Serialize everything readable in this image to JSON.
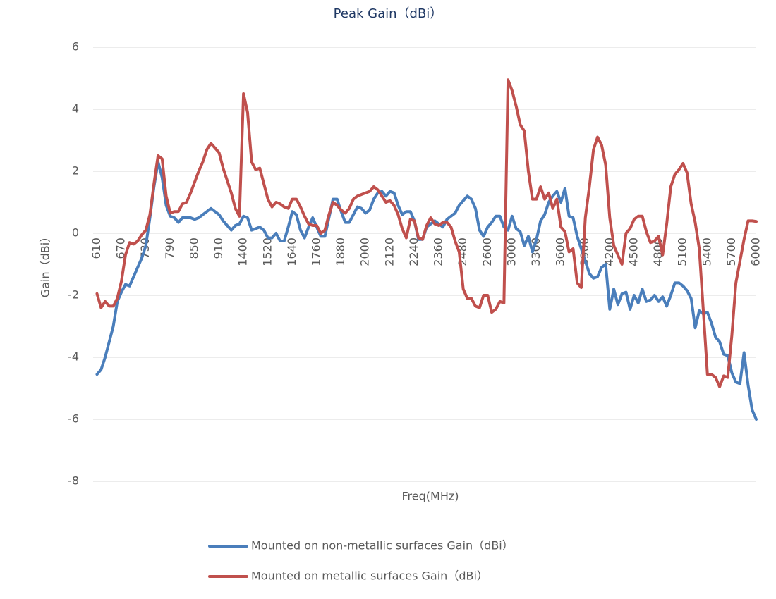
{
  "chart_data": {
    "type": "line",
    "title": "Peak Gain（dBi）",
    "x_label": "Freq(MHz)",
    "y_label": "Gain（dBi）",
    "categories": [
      610,
      null,
      null,
      null,
      null,
      null,
      670,
      null,
      null,
      null,
      null,
      null,
      730,
      null,
      null,
      null,
      null,
      null,
      790,
      null,
      null,
      null,
      null,
      null,
      850,
      null,
      null,
      null,
      null,
      null,
      910,
      null,
      null,
      null,
      null,
      null,
      1400,
      null,
      null,
      null,
      null,
      null,
      1520,
      null,
      null,
      null,
      null,
      null,
      1640,
      null,
      null,
      null,
      null,
      null,
      1760,
      null,
      null,
      null,
      null,
      null,
      1880,
      null,
      null,
      null,
      null,
      null,
      2000,
      null,
      null,
      null,
      null,
      null,
      2120,
      null,
      null,
      null,
      null,
      null,
      2240,
      null,
      null,
      null,
      null,
      null,
      2360,
      null,
      null,
      null,
      null,
      null,
      2480,
      null,
      null,
      null,
      null,
      null,
      2600,
      null,
      null,
      null,
      null,
      null,
      3000,
      null,
      null,
      null,
      null,
      null,
      3300,
      null,
      null,
      null,
      null,
      null,
      3600,
      null,
      null,
      null,
      null,
      null,
      3900,
      null,
      null,
      null,
      null,
      null,
      4200,
      null,
      null,
      null,
      null,
      null,
      4500,
      null,
      null,
      null,
      null,
      null,
      4800,
      null,
      null,
      null,
      null,
      null,
      5100,
      null,
      null,
      null,
      null,
      null,
      5400,
      null,
      null,
      null,
      null,
      null,
      5700,
      null,
      null,
      null,
      null,
      null,
      6000
    ],
    "series": [
      {
        "name": "Mounted on non-metallic surfaces Gain（dBi）",
        "color": "#4a7ebb",
        "values": [
          -4.55,
          -4.4,
          -4.0,
          -3.5,
          -3.0,
          -2.2,
          -1.9,
          -1.65,
          -1.7,
          -1.4,
          -1.1,
          -0.8,
          -0.4,
          0.5,
          1.5,
          2.3,
          1.8,
          0.9,
          0.55,
          0.5,
          0.35,
          0.5,
          0.5,
          0.5,
          0.45,
          0.5,
          0.6,
          0.7,
          0.8,
          0.7,
          0.6,
          0.4,
          0.25,
          0.1,
          0.25,
          0.3,
          0.55,
          0.5,
          0.1,
          0.15,
          0.2,
          0.1,
          -0.15,
          -0.15,
          0.0,
          -0.25,
          -0.25,
          0.2,
          0.7,
          0.6,
          0.1,
          -0.15,
          0.2,
          0.5,
          0.2,
          -0.1,
          -0.1,
          0.5,
          1.1,
          1.1,
          0.7,
          0.35,
          0.35,
          0.6,
          0.85,
          0.8,
          0.65,
          0.75,
          1.1,
          1.3,
          1.35,
          1.2,
          1.35,
          1.3,
          0.9,
          0.6,
          0.7,
          0.7,
          0.4,
          -0.2,
          -0.2,
          0.2,
          0.3,
          0.4,
          0.3,
          0.2,
          0.45,
          0.55,
          0.65,
          0.9,
          1.05,
          1.2,
          1.1,
          0.8,
          0.1,
          -0.1,
          0.2,
          0.35,
          0.55,
          0.55,
          0.2,
          0.1,
          0.55,
          0.15,
          0.05,
          -0.4,
          -0.1,
          -0.6,
          -0.2,
          0.4,
          0.6,
          1.0,
          1.2,
          1.35,
          1.0,
          1.45,
          0.55,
          0.5,
          -0.1,
          -0.5,
          -0.9,
          -1.3,
          -1.45,
          -1.4,
          -1.1,
          -1.0,
          -2.45,
          -1.8,
          -2.3,
          -1.95,
          -1.9,
          -2.45,
          -2.0,
          -2.25,
          -1.8,
          -2.2,
          -2.15,
          -2.0,
          -2.2,
          -2.05,
          -2.35,
          -2.0,
          -1.6,
          -1.6,
          -1.7,
          -1.85,
          -2.1,
          -3.05,
          -2.5,
          -2.6,
          -2.55,
          -2.9,
          -3.35,
          -3.5,
          -3.9,
          -3.95,
          -4.5,
          -4.8,
          -4.85,
          -3.85,
          -4.9,
          -5.7,
          -6.0
        ]
      },
      {
        "name": "Mounted on metallic surfaces Gain（dBi）",
        "color": "#c0504d",
        "values": [
          -1.95,
          -2.4,
          -2.2,
          -2.35,
          -2.35,
          -2.1,
          -1.55,
          -0.7,
          -0.3,
          -0.35,
          -0.25,
          -0.05,
          0.1,
          0.6,
          1.6,
          2.5,
          2.4,
          1.2,
          0.65,
          0.7,
          0.7,
          0.95,
          1.0,
          1.3,
          1.65,
          2.0,
          2.3,
          2.7,
          2.9,
          2.75,
          2.6,
          2.1,
          1.7,
          1.3,
          0.8,
          0.55,
          4.5,
          3.9,
          2.3,
          2.05,
          2.1,
          1.6,
          1.1,
          0.85,
          1.0,
          0.95,
          0.85,
          0.8,
          1.1,
          1.1,
          0.85,
          0.55,
          0.3,
          0.25,
          0.25,
          0.0,
          0.1,
          0.6,
          1.0,
          0.9,
          0.75,
          0.65,
          0.8,
          1.1,
          1.2,
          1.25,
          1.3,
          1.35,
          1.5,
          1.4,
          1.2,
          1.0,
          1.05,
          0.9,
          0.6,
          0.15,
          -0.15,
          0.45,
          0.4,
          -0.15,
          -0.2,
          0.25,
          0.5,
          0.3,
          0.25,
          0.35,
          0.35,
          0.2,
          -0.25,
          -0.6,
          -1.8,
          -2.1,
          -2.1,
          -2.35,
          -2.4,
          -2.0,
          -2.0,
          -2.55,
          -2.45,
          -2.2,
          -2.25,
          4.95,
          4.6,
          4.1,
          3.5,
          3.3,
          2.0,
          1.1,
          1.1,
          1.5,
          1.1,
          1.3,
          0.8,
          1.1,
          0.2,
          0.05,
          -0.6,
          -0.5,
          -1.6,
          -1.75,
          0.5,
          1.5,
          2.7,
          3.1,
          2.85,
          2.2,
          0.5,
          -0.4,
          -0.7,
          -1.0,
          0.0,
          0.15,
          0.45,
          0.55,
          0.55,
          0.05,
          -0.3,
          -0.25,
          -0.1,
          -0.7,
          0.3,
          1.5,
          1.9,
          2.05,
          2.25,
          1.95,
          0.95,
          0.35,
          -0.5,
          -2.5,
          -4.55,
          -4.55,
          -4.65,
          -4.95,
          -4.6,
          -4.65,
          -3.3,
          -1.6,
          -0.9,
          -0.2,
          0.4,
          0.4,
          0.38
        ]
      }
    ],
    "ylim": [
      -8,
      6
    ],
    "yticks": [
      -8,
      -6,
      -4,
      -2,
      0,
      2,
      4,
      6
    ],
    "grid": true,
    "legend": "bottom"
  }
}
